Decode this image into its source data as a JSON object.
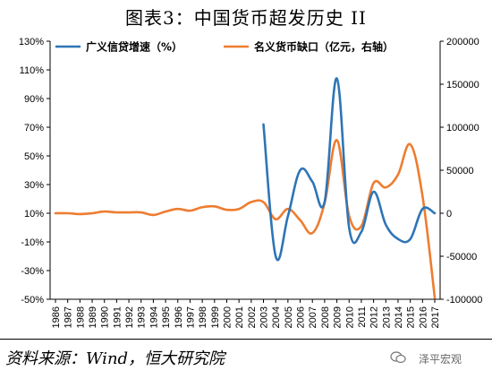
{
  "figure_title": "图表3：中国货币超发历史 II",
  "source_note": "资料来源：Wind，恒大研究院",
  "watermark": "泽平宏观",
  "colors": {
    "credit_series": "#2E75B6",
    "gap_series": "#ED7D31",
    "axis": "#000000"
  },
  "chart_data": {
    "type": "line",
    "title": "",
    "xlabel": "",
    "ylabel_left": "",
    "ylabel_right": "",
    "x": [
      1986,
      1987,
      1988,
      1989,
      1990,
      1991,
      1992,
      1993,
      1994,
      1995,
      1996,
      1997,
      1998,
      1999,
      2000,
      2001,
      2002,
      2003,
      2004,
      2005,
      2006,
      2007,
      2008,
      2009,
      2010,
      2011,
      2012,
      2013,
      2014,
      2015,
      2016,
      2017
    ],
    "x_tick_labels": [
      "1986",
      "1987",
      "1988",
      "1989",
      "1990",
      "1991",
      "1992",
      "1993",
      "1994",
      "1995",
      "1996",
      "1997",
      "1998",
      "1999",
      "2000",
      "2001",
      "2002",
      "2003",
      "2004",
      "2005",
      "2006",
      "2007",
      "2008",
      "2009",
      "2010",
      "2011",
      "2012",
      "2013",
      "2014",
      "2015",
      "2016",
      "2017"
    ],
    "y_left_ticks": [
      -50,
      -30,
      -10,
      10,
      30,
      50,
      70,
      90,
      110,
      130
    ],
    "y_left_tick_labels": [
      "-50%",
      "-30%",
      "-10%",
      "10%",
      "30%",
      "50%",
      "70%",
      "90%",
      "110%",
      "130%"
    ],
    "y_left_range": [
      -50,
      130
    ],
    "y_right_ticks": [
      -100000,
      -50000,
      0,
      50000,
      100000,
      150000,
      200000
    ],
    "y_right_tick_labels": [
      "-100000",
      "-50000",
      "0",
      "50000",
      "100000",
      "150000",
      "200000"
    ],
    "y_right_range": [
      -100000,
      200000
    ],
    "legend_position": "top",
    "series": [
      {
        "name": "广义信贷增速（%）",
        "axis": "left",
        "color": "#2E75B6",
        "x": [
          2003,
          2004,
          2005,
          2006,
          2007,
          2008,
          2009,
          2010,
          2011,
          2012,
          2013,
          2014,
          2015,
          2016,
          2017
        ],
        "values": [
          72,
          -20,
          8,
          40,
          32,
          18,
          104,
          0,
          -3,
          25,
          2,
          -8,
          -8,
          13,
          10
        ]
      },
      {
        "name": "名义货币缺口（亿元，右轴）",
        "axis": "right",
        "color": "#ED7D31",
        "x": [
          1986,
          1987,
          1988,
          1989,
          1990,
          1991,
          1992,
          1993,
          1994,
          1995,
          1996,
          1997,
          1998,
          1999,
          2000,
          2001,
          2002,
          2003,
          2004,
          2005,
          2006,
          2007,
          2008,
          2009,
          2010,
          2011,
          2012,
          2013,
          2014,
          2015,
          2016,
          2017
        ],
        "values": [
          0,
          0,
          -1000,
          0,
          2000,
          1000,
          1000,
          1000,
          -2000,
          2000,
          5000,
          3000,
          7000,
          8000,
          4000,
          5000,
          13000,
          13000,
          -7000,
          5000,
          -8000,
          -23000,
          12000,
          85000,
          -3000,
          -15000,
          35000,
          30000,
          45000,
          80000,
          20000,
          -98000
        ]
      }
    ]
  }
}
